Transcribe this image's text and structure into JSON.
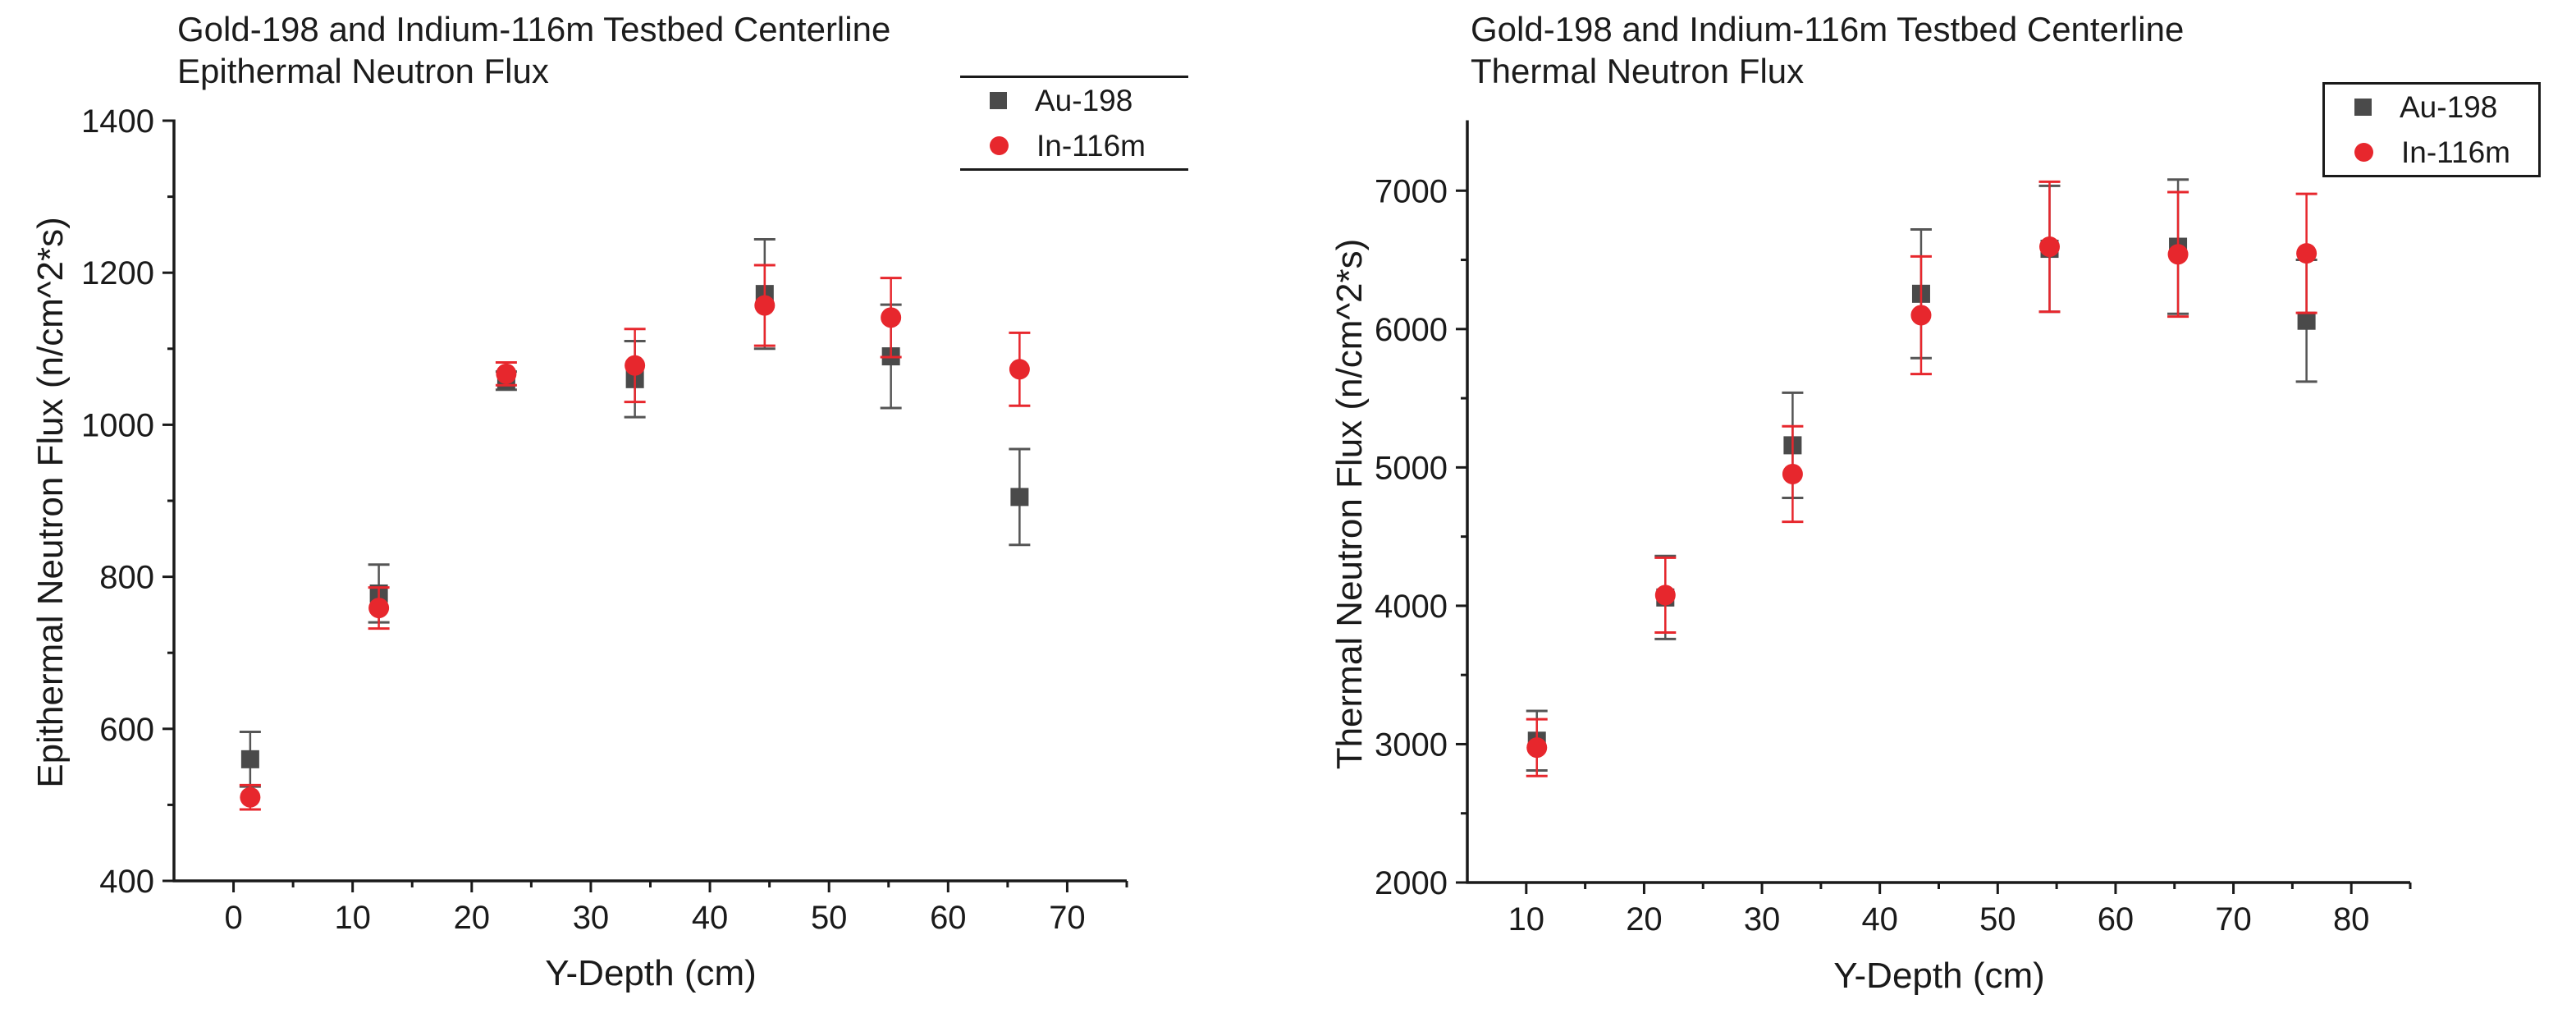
{
  "page": {
    "background": "#ffffff"
  },
  "colors": {
    "au_marker": "#4a4a4a",
    "in_marker": "#e7272d",
    "au_errorbar": "#555555",
    "in_errorbar": "#e7272d",
    "axis": "#1a1a1a"
  },
  "chart_data": [
    {
      "type": "scatter",
      "title_line1": "Gold-198 and Indium-116m Testbed Centerline",
      "title_line2": "Epithermal Neutron Flux",
      "xlabel": "Y-Depth (cm)",
      "ylabel": "Epithermal Neutron Flux (n/cm^2*s)",
      "xlim": [
        -5,
        75
      ],
      "ylim": [
        400,
        1400
      ],
      "x_major_ticks": [
        0,
        10,
        20,
        30,
        40,
        50,
        60,
        70
      ],
      "x_minor_ticks": [
        5,
        15,
        25,
        35,
        45,
        55,
        65,
        75
      ],
      "y_major_ticks": [
        400,
        600,
        800,
        1000,
        1200,
        1400
      ],
      "y_minor_ticks": [
        500,
        700,
        900,
        1100,
        1300
      ],
      "grid": false,
      "legend_position": "top-right",
      "x": [
        1.4,
        12.2,
        22.9,
        33.7,
        44.6,
        55.2,
        66.0
      ],
      "series": [
        {
          "name": "Au-198",
          "marker": "square",
          "y": [
            560,
            778,
            1058,
            1060,
            1172,
            1090,
            905
          ],
          "yerr": [
            36,
            38,
            12,
            50,
            72,
            68,
            63
          ]
        },
        {
          "name": "In-116m",
          "marker": "circle",
          "y": [
            510,
            759,
            1067,
            1078,
            1157,
            1141,
            1073
          ],
          "yerr": [
            16,
            27,
            15,
            48,
            53,
            52,
            48
          ]
        }
      ]
    },
    {
      "type": "scatter",
      "title_line1": "Gold-198 and Indium-116m Testbed Centerline",
      "title_line2": "Thermal Neutron Flux",
      "xlabel": "Y-Depth (cm)",
      "ylabel": "Thermal Neutron Flux (n/cm^2*s)",
      "xlim": [
        5,
        85
      ],
      "ylim": [
        2000,
        7500
      ],
      "x_major_ticks": [
        10,
        20,
        30,
        40,
        50,
        60,
        70,
        80
      ],
      "x_minor_ticks": [
        15,
        25,
        35,
        45,
        55,
        65,
        75,
        85
      ],
      "y_major_ticks": [
        2000,
        3000,
        4000,
        5000,
        6000,
        7000
      ],
      "y_minor_ticks": [
        2500,
        3500,
        4500,
        5500,
        6500
      ],
      "grid": false,
      "legend_position": "top-right",
      "x": [
        10.9,
        21.8,
        32.6,
        43.5,
        54.4,
        65.3,
        76.2
      ],
      "series": [
        {
          "name": "Au-198",
          "marker": "square",
          "y": [
            3025,
            4060,
            5160,
            6255,
            6580,
            6595,
            6060
          ],
          "yerr": [
            215,
            300,
            380,
            465,
            455,
            485,
            440
          ]
        },
        {
          "name": "In-116m",
          "marker": "circle",
          "y": [
            2975,
            4077,
            4952,
            6100,
            6595,
            6540,
            6547
          ],
          "yerr": [
            205,
            270,
            345,
            425,
            470,
            450,
            430
          ]
        }
      ]
    }
  ]
}
